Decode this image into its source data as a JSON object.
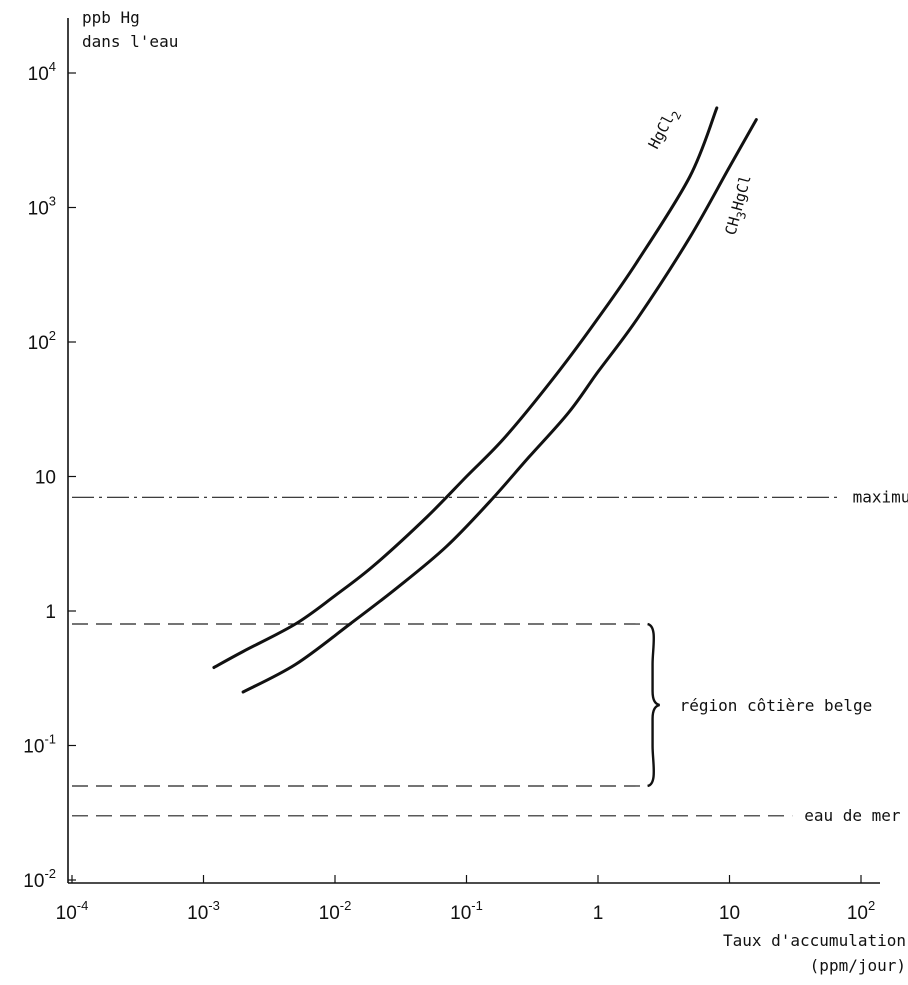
{
  "chart_data": {
    "type": "line",
    "xlabel": [
      "Taux d'accumulation",
      "(ppm/jour)"
    ],
    "ylabel": [
      "ppb Hg",
      "dans l'eau"
    ],
    "xscale": "log",
    "yscale": "log",
    "xlim": [
      0.0001,
      200
    ],
    "ylim": [
      0.01,
      30000
    ],
    "xticks": [
      {
        "value": 0.0001,
        "base": "10",
        "exp": "-4"
      },
      {
        "value": 0.001,
        "base": "10",
        "exp": "-3"
      },
      {
        "value": 0.01,
        "base": "10",
        "exp": "-2"
      },
      {
        "value": 0.1,
        "base": "10",
        "exp": "-1"
      },
      {
        "value": 1,
        "base": "1",
        "exp": ""
      },
      {
        "value": 10,
        "base": "10",
        "exp": ""
      },
      {
        "value": 100,
        "base": "10",
        "exp": "2"
      }
    ],
    "yticks": [
      {
        "value": 0.01,
        "base": "10",
        "exp": "-2"
      },
      {
        "value": 0.1,
        "base": "10",
        "exp": "-1"
      },
      {
        "value": 1,
        "base": "1",
        "exp": ""
      },
      {
        "value": 10,
        "base": "10",
        "exp": ""
      },
      {
        "value": 100,
        "base": "10",
        "exp": "2"
      },
      {
        "value": 1000,
        "base": "10",
        "exp": "3"
      },
      {
        "value": 10000,
        "base": "10",
        "exp": "4"
      }
    ],
    "series": [
      {
        "name": "HgCl2",
        "points": [
          [
            0.0012,
            0.38
          ],
          [
            0.002,
            0.5
          ],
          [
            0.005,
            0.8
          ],
          [
            0.01,
            1.3
          ],
          [
            0.02,
            2.2
          ],
          [
            0.05,
            5.0
          ],
          [
            0.1,
            10
          ],
          [
            0.2,
            20
          ],
          [
            0.5,
            60
          ],
          [
            1,
            150
          ],
          [
            2,
            400
          ],
          [
            5,
            1700
          ],
          [
            8,
            5500
          ]
        ]
      },
      {
        "name": "CH3HgCl",
        "points": [
          [
            0.002,
            0.25
          ],
          [
            0.005,
            0.4
          ],
          [
            0.013,
            0.8
          ],
          [
            0.03,
            1.5
          ],
          [
            0.07,
            3.0
          ],
          [
            0.15,
            6.5
          ],
          [
            0.3,
            14
          ],
          [
            0.6,
            30
          ],
          [
            1,
            60
          ],
          [
            2,
            150
          ],
          [
            5,
            600
          ],
          [
            10,
            2000
          ],
          [
            16,
            4500
          ]
        ]
      }
    ],
    "reference_lines": [
      {
        "label": "maximum Minamata",
        "y": 7,
        "x_start": 0.0001,
        "x_end": 70,
        "style": "dash-dot"
      },
      {
        "label": "eau de mer naturelle",
        "y": 0.03,
        "x_start": 0.0001,
        "x_end": 30,
        "style": "dashed"
      }
    ],
    "range_annotation": {
      "label": "région côtière belge",
      "y_low": 0.05,
      "y_high": 0.8,
      "x_start": 0.0001,
      "x_end": 2.3
    }
  }
}
